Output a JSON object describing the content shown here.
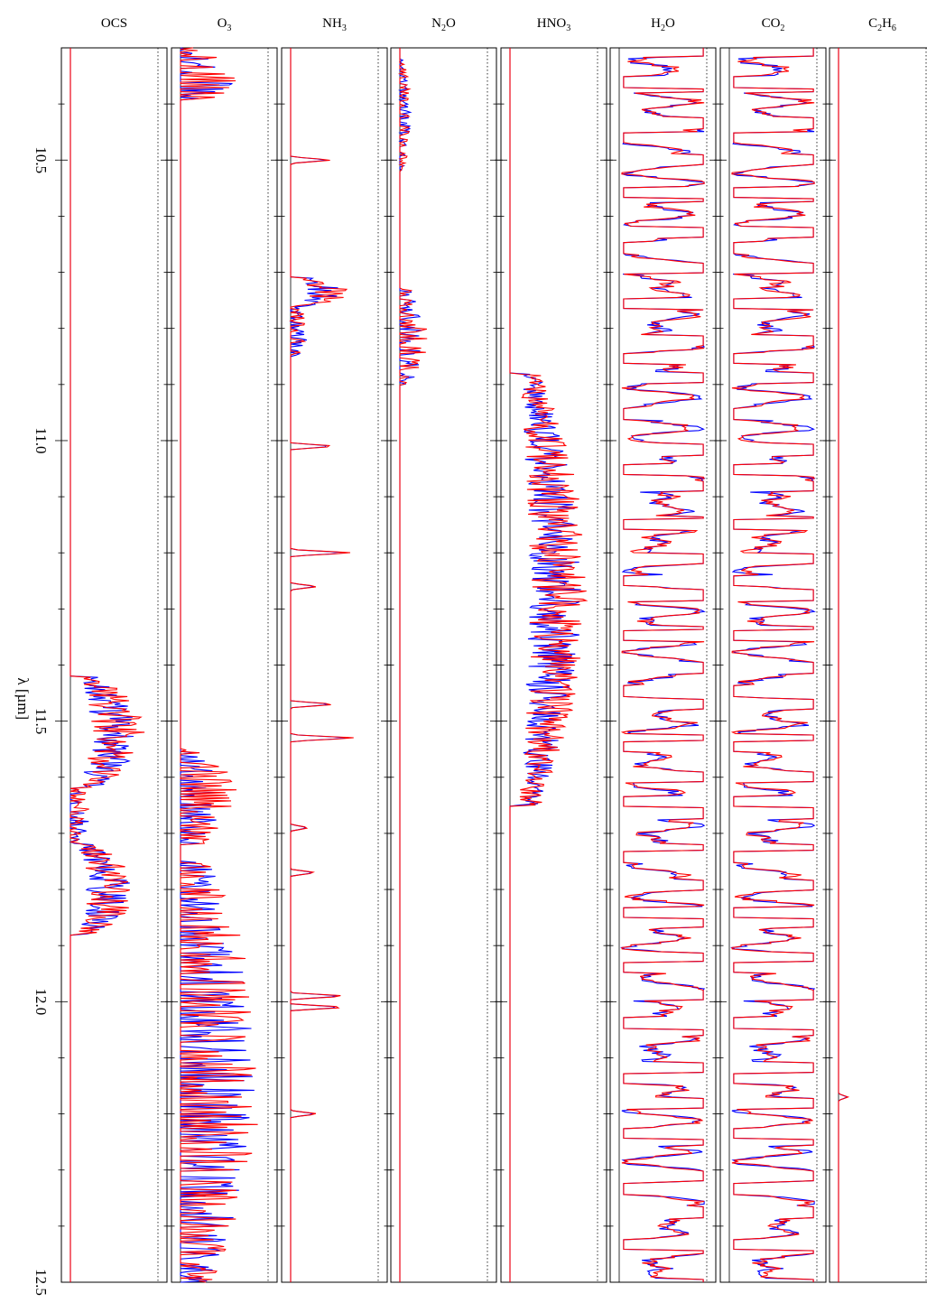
{
  "chart_data": {
    "type": "line",
    "orientation": "rotated: wavelength axis runs vertically, absorption increases to the right in each panel",
    "x_axis": {
      "label": "λ [µm]",
      "lim": [
        10.3,
        12.5
      ],
      "ticks": [
        10.5,
        11.0,
        11.5,
        12.0,
        12.5
      ],
      "tick_labels": [
        "10.5",
        "11.0",
        "11.5",
        "12.0",
        "12.5"
      ]
    },
    "colors": {
      "series_1": "#0000ff",
      "series_2": "#ff0000",
      "axes": "#000000"
    },
    "panels": [
      {
        "title": "OCS",
        "sub": "",
        "title_main": "OCS",
        "title_tail": "",
        "bands": [
          {
            "start": 11.42,
            "end": 11.62,
            "peak": 0.8,
            "kind": "dense"
          },
          {
            "start": 11.72,
            "end": 11.88,
            "peak": 0.7,
            "kind": "dense"
          },
          {
            "start": 11.6,
            "end": 11.74,
            "peak": 0.22,
            "kind": "sparse"
          }
        ]
      },
      {
        "title": "O3",
        "sub": "3",
        "title_main": "O",
        "title_tail": "",
        "bands": [
          {
            "start": 10.3,
            "end": 10.4,
            "peak": 0.62,
            "kind": "sparse"
          },
          {
            "start": 11.55,
            "end": 11.72,
            "peak": 0.62,
            "kind": "sparse"
          },
          {
            "start": 11.75,
            "end": 12.5,
            "peak": 0.85,
            "kind": "sparse"
          }
        ]
      },
      {
        "title": "NH3",
        "sub": "3",
        "title_main": "NH",
        "title_tail": "",
        "bands": [
          {
            "start": 10.71,
            "end": 10.76,
            "peak": 0.62,
            "kind": "dense"
          },
          {
            "start": 10.76,
            "end": 10.85,
            "peak": 0.2,
            "kind": "sparse"
          }
        ],
        "lines": [
          {
            "x": 10.5,
            "peak": 0.45
          },
          {
            "x": 11.01,
            "peak": 0.5
          },
          {
            "x": 11.2,
            "peak": 0.68
          },
          {
            "x": 11.26,
            "peak": 0.3
          },
          {
            "x": 11.47,
            "peak": 0.5
          },
          {
            "x": 11.53,
            "peak": 0.72
          },
          {
            "x": 11.69,
            "peak": 0.2
          },
          {
            "x": 11.77,
            "peak": 0.28
          },
          {
            "x": 11.99,
            "peak": 0.62
          },
          {
            "x": 12.01,
            "peak": 0.62
          },
          {
            "x": 12.2,
            "peak": 0.3
          }
        ]
      },
      {
        "title": "N2O",
        "sub": "2",
        "title_main": "N",
        "title_tail": "O",
        "bands": [
          {
            "start": 10.32,
            "end": 10.52,
            "peak": 0.12,
            "kind": "sparse"
          },
          {
            "start": 10.73,
            "end": 10.9,
            "peak": 0.3,
            "kind": "sparse"
          }
        ]
      },
      {
        "title": "HNO3",
        "sub": "3",
        "title_main": "HNO",
        "title_tail": "",
        "bands": [
          {
            "start": 10.88,
            "end": 11.65,
            "peak": 0.82,
            "kind": "dense"
          }
        ]
      },
      {
        "title": "H2O",
        "sub": "2",
        "title_main": "H",
        "title_tail": "O",
        "saturated": true
      },
      {
        "title": "CO2",
        "sub": "2",
        "title_main": "CO",
        "title_tail": "",
        "saturated": true
      },
      {
        "title": "C2H6",
        "sub": "2",
        "title_main": "C",
        "title_tail": "H",
        "sub2": "6",
        "lines": [
          {
            "x": 12.17,
            "peak": 0.1
          }
        ]
      }
    ]
  }
}
